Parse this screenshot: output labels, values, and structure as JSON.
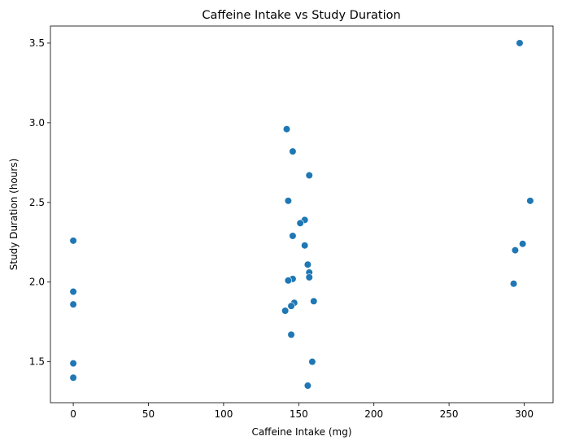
{
  "chart_data": {
    "type": "scatter",
    "title": "Caffeine Intake vs Study Duration",
    "xlabel": "Caffeine Intake (mg)",
    "ylabel": "Study Duration (hours)",
    "xlim": [
      -15.2,
      319.2
    ],
    "ylim": [
      1.243,
      3.607
    ],
    "xticks": [
      0,
      50,
      100,
      150,
      200,
      250,
      300
    ],
    "yticks": [
      1.5,
      2.0,
      2.5,
      3.0,
      3.5
    ],
    "xtick_labels": [
      "0",
      "50",
      "100",
      "150",
      "200",
      "250",
      "300"
    ],
    "ytick_labels": [
      "1.5",
      "2.0",
      "2.5",
      "3.0",
      "3.5"
    ],
    "grid": false,
    "marker_color": "#1f77b4",
    "points": [
      {
        "x": 0,
        "y": 2.26
      },
      {
        "x": 0,
        "y": 1.94
      },
      {
        "x": 0,
        "y": 1.86
      },
      {
        "x": 0,
        "y": 1.49
      },
      {
        "x": 0,
        "y": 1.4
      },
      {
        "x": 142,
        "y": 2.96
      },
      {
        "x": 146,
        "y": 2.82
      },
      {
        "x": 157,
        "y": 2.67
      },
      {
        "x": 143,
        "y": 2.51
      },
      {
        "x": 154,
        "y": 2.39
      },
      {
        "x": 151,
        "y": 2.37
      },
      {
        "x": 146,
        "y": 2.29
      },
      {
        "x": 154,
        "y": 2.23
      },
      {
        "x": 156,
        "y": 2.11
      },
      {
        "x": 157,
        "y": 2.06
      },
      {
        "x": 157,
        "y": 2.03
      },
      {
        "x": 146,
        "y": 2.02
      },
      {
        "x": 143,
        "y": 2.01
      },
      {
        "x": 160,
        "y": 1.88
      },
      {
        "x": 147,
        "y": 1.87
      },
      {
        "x": 145,
        "y": 1.85
      },
      {
        "x": 141,
        "y": 1.82
      },
      {
        "x": 145,
        "y": 1.67
      },
      {
        "x": 159,
        "y": 1.5
      },
      {
        "x": 156,
        "y": 1.35
      },
      {
        "x": 297,
        "y": 3.5
      },
      {
        "x": 304,
        "y": 2.51
      },
      {
        "x": 299,
        "y": 2.24
      },
      {
        "x": 294,
        "y": 2.2
      },
      {
        "x": 293,
        "y": 1.99
      }
    ]
  }
}
